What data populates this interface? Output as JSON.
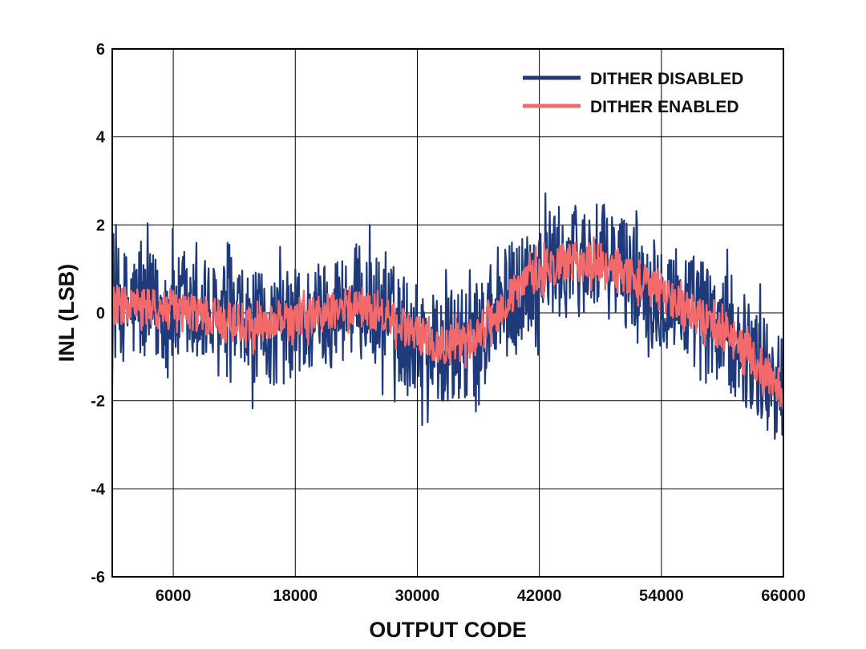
{
  "chart_data": {
    "type": "line",
    "title": "",
    "xlabel": "OUTPUT CODE",
    "ylabel": "INL (LSB)",
    "xlim": [
      0,
      66000
    ],
    "ylim": [
      -6,
      6
    ],
    "xticks": [
      6000,
      18000,
      30000,
      42000,
      54000,
      66000
    ],
    "xtick_labels": [
      "6000",
      "18000",
      "30000",
      "42000",
      "54000",
      "66000"
    ],
    "yticks": [
      -6,
      -4,
      -2,
      0,
      2,
      4,
      6
    ],
    "ytick_labels": [
      "-6",
      "-4",
      "-2",
      "0",
      "2",
      "4",
      "6"
    ],
    "grid": true,
    "legend_position": "top-right",
    "series": [
      {
        "name": "DITHER DISABLED",
        "color": "#1f3a7a",
        "noise_amplitude_lsb": 1.3,
        "trend": {
          "x": [
            0,
            3000,
            6000,
            9000,
            12000,
            15000,
            18000,
            21000,
            24000,
            27000,
            30000,
            33000,
            36000,
            39000,
            42000,
            45000,
            48000,
            51000,
            54000,
            57000,
            60000,
            63000,
            66000
          ],
          "y": [
            0.2,
            0.1,
            0.0,
            -0.1,
            -0.3,
            -0.4,
            -0.3,
            0.0,
            0.3,
            -0.1,
            -0.6,
            -0.9,
            -0.6,
            0.3,
            1.0,
            1.2,
            1.2,
            0.9,
            0.5,
            0.1,
            -0.4,
            -1.0,
            -1.8
          ]
        }
      },
      {
        "name": "DITHER ENABLED",
        "color": "#f46a6a",
        "noise_amplitude_lsb": 0.45,
        "trend": {
          "x": [
            0,
            3000,
            6000,
            9000,
            12000,
            15000,
            18000,
            21000,
            24000,
            27000,
            30000,
            33000,
            36000,
            39000,
            42000,
            45000,
            48000,
            51000,
            54000,
            57000,
            60000,
            63000,
            66000
          ],
          "y": [
            0.2,
            0.1,
            0.05,
            -0.05,
            -0.2,
            -0.3,
            -0.2,
            0.0,
            0.2,
            -0.1,
            -0.5,
            -0.75,
            -0.5,
            0.3,
            1.0,
            1.15,
            1.15,
            0.85,
            0.45,
            0.05,
            -0.4,
            -1.0,
            -1.8
          ]
        }
      }
    ]
  }
}
